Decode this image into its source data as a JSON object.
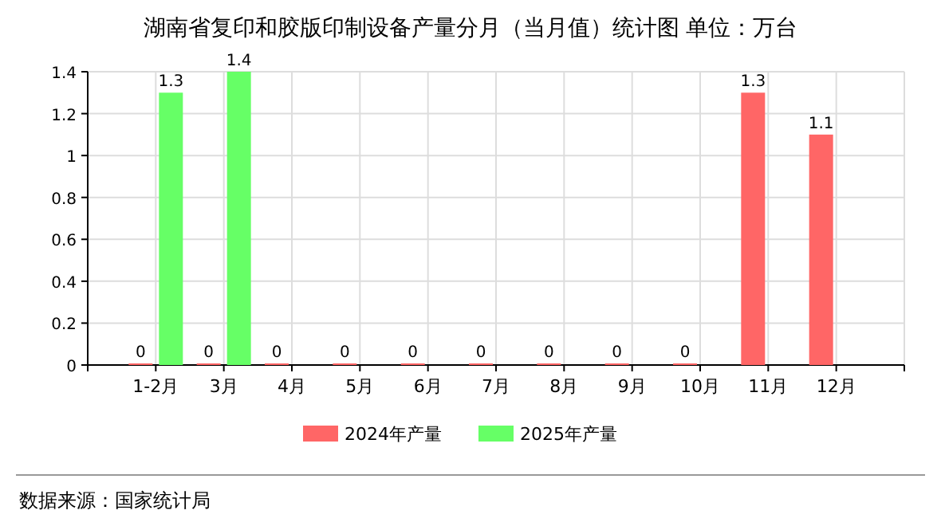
{
  "chart_data": {
    "type": "bar",
    "title": "湖南省复印和胶版印制设备产量分月（当月值）统计图 单位：万台",
    "categories": [
      "1-2月",
      "3月",
      "4月",
      "5月",
      "6月",
      "7月",
      "8月",
      "9月",
      "10月",
      "11月",
      "12月"
    ],
    "series": [
      {
        "name": "2024年产量",
        "color": "#ff6666",
        "values": [
          0,
          0,
          0,
          0,
          0,
          0,
          0,
          0,
          0,
          1.3,
          1.1
        ]
      },
      {
        "name": "2025年产量",
        "color": "#66ff66",
        "values": [
          1.3,
          1.4,
          null,
          null,
          null,
          null,
          null,
          null,
          null,
          null,
          null
        ]
      }
    ],
    "ylim": [
      0,
      1.4
    ],
    "yticks": [
      0,
      0.2,
      0.4,
      0.6,
      0.8,
      1,
      1.2,
      1.4
    ],
    "grid": true,
    "legend": "bottom",
    "data_labels": true,
    "annotations": [
      "数据来源：国家统计局"
    ]
  }
}
